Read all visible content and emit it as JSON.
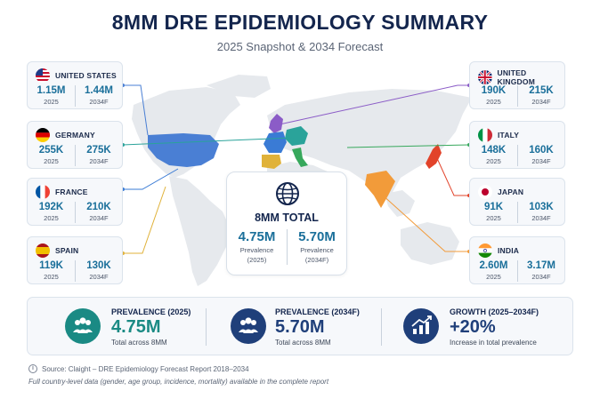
{
  "header": {
    "title": "8MM DRE EPIDEMIOLOGY SUMMARY",
    "subtitle": "2025 Snapshot & 2034 Forecast"
  },
  "countries": [
    {
      "id": "us",
      "name": "UNITED STATES",
      "v2025": "1.15M",
      "v2034": "1.44M",
      "y1": "2025",
      "y2": "2034F"
    },
    {
      "id": "de",
      "name": "GERMANY",
      "v2025": "255K",
      "v2034": "275K",
      "y1": "2025",
      "y2": "2034F"
    },
    {
      "id": "fr",
      "name": "FRANCE",
      "v2025": "192K",
      "v2034": "210K",
      "y1": "2025",
      "y2": "2034F"
    },
    {
      "id": "es",
      "name": "SPAIN",
      "v2025": "119K",
      "v2034": "130K",
      "y1": "2025",
      "y2": "2034F"
    },
    {
      "id": "uk",
      "name": "UNITED KINGDOM",
      "v2025": "190K",
      "v2034": "215K",
      "y1": "2025",
      "y2": "2034F"
    },
    {
      "id": "it",
      "name": "ITALY",
      "v2025": "148K",
      "v2034": "160K",
      "y1": "2025",
      "y2": "2034F"
    },
    {
      "id": "jp",
      "name": "JAPAN",
      "v2025": "91K",
      "v2034": "103K",
      "y1": "2025",
      "y2": "2034F"
    },
    {
      "id": "in",
      "name": "INDIA",
      "v2025": "2.60M",
      "v2034": "3.17M",
      "y1": "2025",
      "y2": "2034F"
    }
  ],
  "total": {
    "icon": "globe-icon",
    "title": "8MM TOTAL",
    "v2025": "4.75M",
    "l2025a": "Prevalence",
    "l2025b": "(2025)",
    "v2034": "5.70M",
    "l2034a": "Prevalence",
    "l2034b": "(2034F)"
  },
  "kpis": [
    {
      "icon": "people-icon",
      "label": "PREVALENCE (2025)",
      "value": "4.75M",
      "sub": "Total across 8MM",
      "color": "#1a8a84"
    },
    {
      "icon": "people-icon",
      "label": "PREVALENCE (2034F)",
      "value": "5.70M",
      "sub": "Total across 8MM",
      "color": "#1f3f7a"
    },
    {
      "icon": "growth-chart-icon",
      "label": "GROWTH (2025–2034F)",
      "value": "+20%",
      "sub": "Increase in total prevalence",
      "color": "#1f3f7a"
    }
  ],
  "footer": {
    "source": "Source: Claight – DRE Epidemiology Forecast Report 2018–2034",
    "note": "Full country-level data (gender, age group, incidence, mortality) available in the complete report"
  },
  "colors": {
    "us": "#4a7fd4",
    "de": "#2aa39a",
    "fr": "#3a7bd5",
    "es": "#e0b23a",
    "uk": "#8b5cc7",
    "it": "#37a85c",
    "jp": "#e2432a",
    "in": "#f29b3a",
    "accent": "#1a6f9a",
    "navy": "#13254d"
  }
}
